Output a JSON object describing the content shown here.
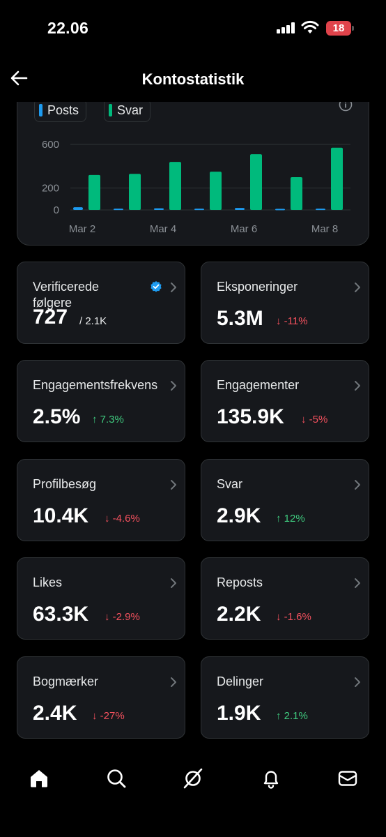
{
  "status_bar": {
    "time": "22.06",
    "battery": "18"
  },
  "header": {
    "title": "Kontostatistik",
    "back_icon": "back-arrow-icon"
  },
  "chart_data": {
    "type": "bar",
    "legend": [
      "Posts",
      "Svar"
    ],
    "tick_labels_x": [
      "Mar 2",
      "Mar 4",
      "Mar 6",
      "Mar 8"
    ],
    "tick_labels_y": [
      "600",
      "200",
      "0"
    ],
    "x": [
      "Mar 2",
      "Mar 3",
      "Mar 4",
      "Mar 5",
      "Mar 6",
      "Mar 7",
      "Mar 8"
    ],
    "series": [
      {
        "name": "Posts",
        "color": "#1d9bf0",
        "values": [
          25,
          12,
          15,
          12,
          18,
          10,
          12
        ]
      },
      {
        "name": "Svar",
        "color": "#00ba7c",
        "values": [
          320,
          330,
          440,
          350,
          510,
          300,
          570
        ]
      }
    ],
    "ylim": [
      0,
      650
    ],
    "grid": true,
    "legend_position": "top-left"
  },
  "stats": [
    {
      "label": "Verificerede følgere",
      "label_line1": "Verificerede",
      "label_line2": "følgere",
      "value": "727",
      "total": "/ 2.1K",
      "verified": true
    },
    {
      "label": "Eksponeringer",
      "value": "5.3M",
      "change": "↓ -11%",
      "direction": "down"
    },
    {
      "label": "Engagementsfrekvens",
      "value": "2.5%",
      "change": "↑ 7.3%",
      "direction": "up"
    },
    {
      "label": "Engagementer",
      "value": "135.9K",
      "change": "↓ -5%",
      "direction": "down"
    },
    {
      "label": "Profilbesøg",
      "value": "10.4K",
      "change": "↓ -4.6%",
      "direction": "down"
    },
    {
      "label": "Svar",
      "value": "2.9K",
      "change": "↑ 12%",
      "direction": "up"
    },
    {
      "label": "Likes",
      "value": "63.3K",
      "change": "↓ -2.9%",
      "direction": "down"
    },
    {
      "label": "Reposts",
      "value": "2.2K",
      "change": "↓ -1.6%",
      "direction": "down"
    },
    {
      "label": "Bogmærker",
      "value": "2.4K",
      "change": "↓ -27%",
      "direction": "down"
    },
    {
      "label": "Delinger",
      "value": "1.9K",
      "change": "↑ 2.1%",
      "direction": "up"
    }
  ],
  "nav": {
    "items": [
      "home-icon",
      "search-icon",
      "grok-icon",
      "bell-icon",
      "mail-icon"
    ]
  },
  "colors": {
    "background": "#000000",
    "card": "#16181c",
    "border": "#2f3336",
    "posts": "#1d9bf0",
    "replies": "#00ba7c",
    "down": "#f4515e",
    "up": "#3fc97e"
  }
}
